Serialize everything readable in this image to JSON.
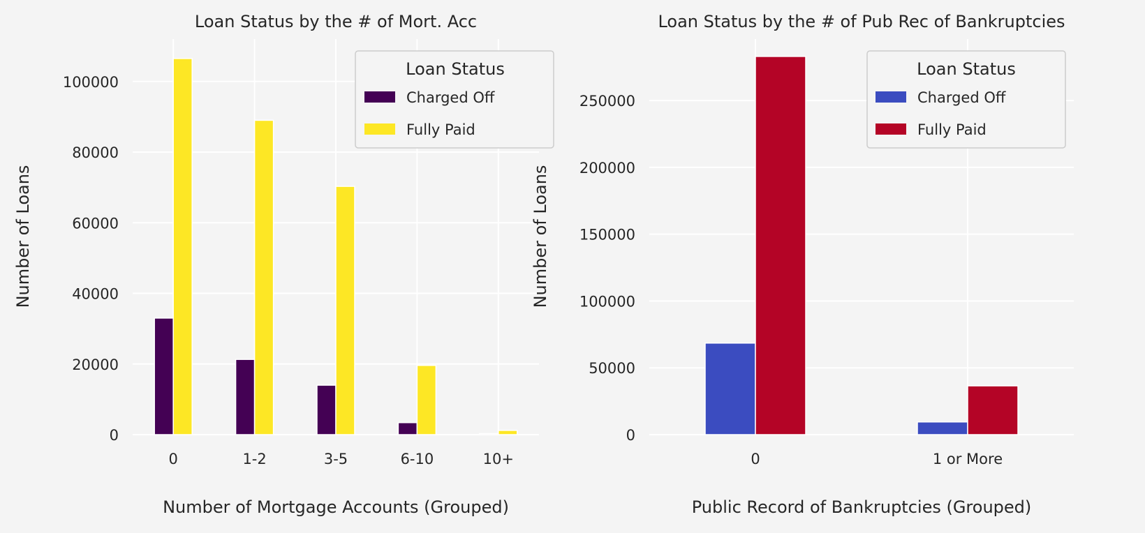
{
  "chart_data": [
    {
      "type": "bar",
      "title": "Loan Status by the # of Mort. Acc",
      "xlabel": "Number of Mortgage Accounts (Grouped)",
      "ylabel": "Number of Loans",
      "categories": [
        "0",
        "1-2",
        "3-5",
        "6-10",
        "10+"
      ],
      "ylim": [
        0,
        112000
      ],
      "yticks": [
        0,
        20000,
        40000,
        60000,
        80000,
        100000
      ],
      "legend": {
        "title": "Loan Status",
        "placement": "top-right"
      },
      "series": [
        {
          "name": "Charged Off",
          "color": "#440154",
          "values": [
            33000,
            21300,
            14000,
            3400,
            300
          ]
        },
        {
          "name": "Fully Paid",
          "color": "#fde725",
          "values": [
            106500,
            89000,
            70300,
            19600,
            1200
          ]
        }
      ],
      "grid": true
    },
    {
      "type": "bar",
      "title": "Loan Status by the # of Pub Rec of Bankruptcies",
      "xlabel": "Public Record of Bankruptcies (Grouped)",
      "ylabel": "Number of Loans",
      "categories": [
        "0",
        "1 or More"
      ],
      "ylim": [
        0,
        296000
      ],
      "yticks": [
        0,
        50000,
        100000,
        150000,
        200000,
        250000
      ],
      "legend": {
        "title": "Loan Status",
        "placement": "top-right"
      },
      "series": [
        {
          "name": "Charged Off",
          "color": "#3b4cc0",
          "values": [
            68500,
            9500
          ]
        },
        {
          "name": "Fully Paid",
          "color": "#b40426",
          "values": [
            283000,
            36500
          ]
        }
      ],
      "grid": true
    }
  ]
}
